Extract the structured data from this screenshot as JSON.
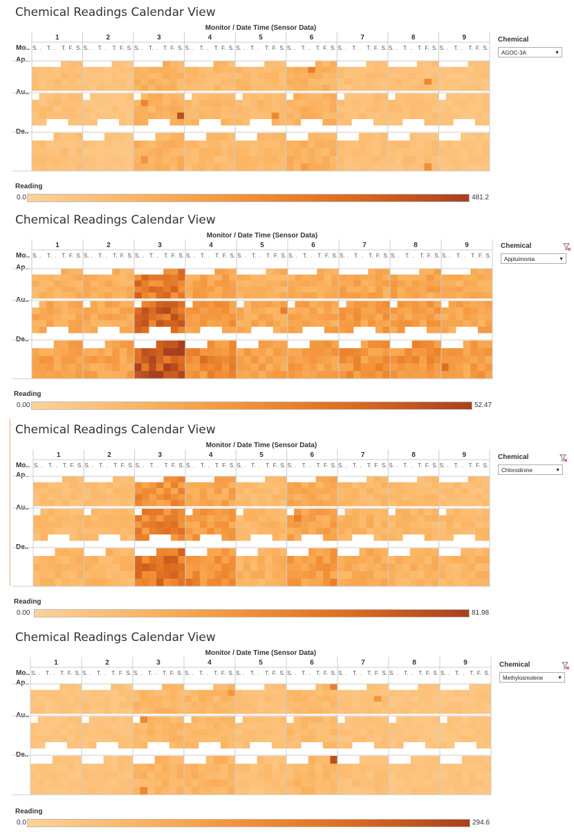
{
  "chart_data": [
    {
      "type": "heatmap",
      "title": "Chemical Readings Calendar View",
      "column_header": "Monitor / Date Time (Sensor Data)",
      "monitors": [
        "1",
        "2",
        "3",
        "4",
        "5",
        "6",
        "7",
        "8",
        "9"
      ],
      "weekday_labels": [
        "S.",
        ".",
        "T.",
        ".",
        "T.",
        "F.",
        "S."
      ],
      "row_header": "Mo..",
      "months": [
        "Ap..",
        "Au..",
        "De.."
      ],
      "color_legend": {
        "title": "Reading",
        "min": "0.0",
        "max": "481.2"
      },
      "monitor_intensity": [
        0.15,
        0.12,
        0.25,
        0.2,
        0.2,
        0.25,
        0.15,
        0.15,
        0.12
      ],
      "month_intensity": [
        1.0,
        1.0,
        1.0
      ],
      "hotspots": [
        {
          "monitor": 3,
          "month": 1,
          "row": 3,
          "day": 6,
          "value": 0.9
        },
        {
          "monitor": 3,
          "month": 1,
          "row": 1,
          "day": 1,
          "value": 0.55
        },
        {
          "monitor": 6,
          "month": 0,
          "row": 1,
          "day": 3,
          "value": 0.6
        },
        {
          "monitor": 8,
          "month": 0,
          "row": 3,
          "day": 5,
          "value": 0.55
        },
        {
          "monitor": 5,
          "month": 1,
          "row": 3,
          "day": 5,
          "value": 0.55
        },
        {
          "monitor": 4,
          "month": 2,
          "row": 5,
          "day": 0,
          "value": 0.55
        },
        {
          "monitor": 6,
          "month": 2,
          "row": 4,
          "day": 2,
          "value": 0.4
        },
        {
          "monitor": 3,
          "month": 2,
          "row": 3,
          "day": 1,
          "value": 0.45
        },
        {
          "monitor": 8,
          "month": 2,
          "row": 4,
          "day": 5,
          "value": 0.5
        }
      ],
      "filter": {
        "label": "Chemical",
        "value": "AGOC-3A",
        "show_clear_icon": false
      }
    },
    {
      "type": "heatmap",
      "title": "Chemical Readings Calendar View",
      "column_header": "Monitor / Date Time (Sensor Data)",
      "monitors": [
        "1",
        "2",
        "3",
        "4",
        "5",
        "6",
        "7",
        "8",
        "9"
      ],
      "weekday_labels": [
        "S.",
        ".",
        "T.",
        ".",
        "T.",
        "F.",
        "S."
      ],
      "row_header": "Mo..",
      "months": [
        "Ap..",
        "Au..",
        "De.."
      ],
      "color_legend": {
        "title": "Reading",
        "min": "0.00",
        "max": "52.47"
      },
      "monitor_intensity": [
        0.3,
        0.3,
        0.7,
        0.4,
        0.3,
        0.32,
        0.38,
        0.38,
        0.32
      ],
      "month_intensity": [
        0.9,
        1.05,
        1.2
      ],
      "hotspots": [
        {
          "monitor": 4,
          "month": 1,
          "row": 0,
          "day": 0,
          "value": 0.62
        },
        {
          "monitor": 4,
          "month": 2,
          "row": 2,
          "day": 2,
          "value": 0.72
        },
        {
          "monitor": 9,
          "month": 2,
          "row": 3,
          "day": 0,
          "value": 0.7
        },
        {
          "monitor": 5,
          "month": 1,
          "row": 1,
          "day": 6,
          "value": 0.6
        },
        {
          "monitor": 3,
          "month": 0,
          "row": 0,
          "day": 6,
          "value": 0.75
        }
      ],
      "filter": {
        "label": "Chemical",
        "value": "Appluimonia",
        "show_clear_icon": true
      }
    },
    {
      "type": "heatmap",
      "title": "Chemical Readings Calendar View",
      "column_header": "Monitor / Date Time (Sensor Data)",
      "monitors": [
        "1",
        "2",
        "3",
        "4",
        "5",
        "6",
        "7",
        "8",
        "9"
      ],
      "weekday_labels": [
        "S.",
        ".",
        "T.",
        ".",
        "T.",
        "F.",
        "S."
      ],
      "row_header": "Mo..",
      "months": [
        "Ap..",
        "Au..",
        "De.."
      ],
      "color_legend": {
        "title": "Reading",
        "min": "0.00",
        "max": "81.98"
      },
      "monitor_intensity": [
        0.2,
        0.2,
        0.55,
        0.4,
        0.22,
        0.35,
        0.25,
        0.22,
        0.2
      ],
      "month_intensity": [
        0.85,
        1.0,
        1.15
      ],
      "hotspots": [
        {
          "monitor": 6,
          "month": 0,
          "row": 0,
          "day": 1,
          "value": 0.85
        },
        {
          "monitor": 6,
          "month": 1,
          "row": 1,
          "day": 1,
          "value": 0.6
        },
        {
          "monitor": 6,
          "month": 2,
          "row": 4,
          "day": 6,
          "value": 0.6
        },
        {
          "monitor": 4,
          "month": 2,
          "row": 4,
          "day": 0,
          "value": 0.68
        },
        {
          "monitor": 3,
          "month": 0,
          "row": 0,
          "day": 6,
          "value": 0.6
        }
      ],
      "filter": {
        "label": "Chemical",
        "value": "Chlorodinine",
        "show_clear_icon": true
      }
    },
    {
      "type": "heatmap",
      "title": "Chemical Readings Calendar View",
      "column_header": "Monitor / Date Time (Sensor Data)",
      "monitors": [
        "1",
        "2",
        "3",
        "4",
        "5",
        "6",
        "7",
        "8",
        "9"
      ],
      "weekday_labels": [
        "S.",
        ".",
        "T.",
        ".",
        "T.",
        "F.",
        "S."
      ],
      "row_header": "Mo..",
      "months": [
        "Ap..",
        "Au..",
        "De.."
      ],
      "color_legend": {
        "title": "Reading",
        "min": "0.0",
        "max": "294.6"
      },
      "monitor_intensity": [
        0.12,
        0.13,
        0.22,
        0.22,
        0.15,
        0.2,
        0.14,
        0.12,
        0.12
      ],
      "month_intensity": [
        1.0,
        1.0,
        1.05
      ],
      "hotspots": [
        {
          "monitor": 6,
          "month": 2,
          "row": 0,
          "day": 6,
          "value": 0.9
        },
        {
          "monitor": 6,
          "month": 0,
          "row": 0,
          "day": 6,
          "value": 0.6
        },
        {
          "monitor": 3,
          "month": 1,
          "row": 0,
          "day": 1,
          "value": 0.55
        },
        {
          "monitor": 3,
          "month": 2,
          "row": 4,
          "day": 1,
          "value": 0.55
        },
        {
          "monitor": 7,
          "month": 0,
          "row": 2,
          "day": 5,
          "value": 0.45
        },
        {
          "monitor": 4,
          "month": 0,
          "row": 1,
          "day": 6,
          "value": 0.45
        }
      ],
      "filter": {
        "label": "Chemical",
        "value": "Methylosmolene",
        "show_clear_icon": true
      }
    }
  ],
  "colors": {
    "scale": [
      "#fdd29a",
      "#fbb461",
      "#f28f35",
      "#d9681f",
      "#a8401f"
    ],
    "gridline": "#cccccc",
    "gap": "#ffffff"
  }
}
